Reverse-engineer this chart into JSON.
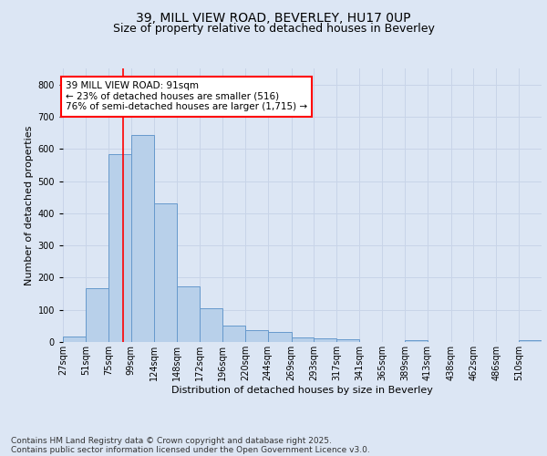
{
  "title_line1": "39, MILL VIEW ROAD, BEVERLEY, HU17 0UP",
  "title_line2": "Size of property relative to detached houses in Beverley",
  "xlabel": "Distribution of detached houses by size in Beverley",
  "ylabel": "Number of detached properties",
  "annotation_line1": "39 MILL VIEW ROAD: 91sqm",
  "annotation_line2": "← 23% of detached houses are smaller (516)",
  "annotation_line3": "76% of semi-detached houses are larger (1,715) →",
  "property_size": 91,
  "categories": [
    "27sqm",
    "51sqm",
    "75sqm",
    "99sqm",
    "124sqm",
    "148sqm",
    "172sqm",
    "196sqm",
    "220sqm",
    "244sqm",
    "269sqm",
    "293sqm",
    "317sqm",
    "341sqm",
    "365sqm",
    "389sqm",
    "413sqm",
    "438sqm",
    "462sqm",
    "486sqm",
    "510sqm"
  ],
  "bar_edges": [
    27,
    51,
    75,
    99,
    124,
    148,
    172,
    196,
    220,
    244,
    269,
    293,
    317,
    341,
    365,
    389,
    413,
    438,
    462,
    486,
    510
  ],
  "bar_widths": [
    24,
    24,
    24,
    25,
    24,
    24,
    24,
    24,
    24,
    25,
    24,
    24,
    24,
    24,
    24,
    24,
    25,
    24,
    24,
    24,
    24
  ],
  "bar_heights": [
    18,
    168,
    583,
    643,
    430,
    172,
    105,
    52,
    37,
    30,
    14,
    12,
    9,
    0,
    0,
    7,
    0,
    0,
    0,
    0,
    6
  ],
  "bar_color": "#b8d0ea",
  "bar_edge_color": "#6699cc",
  "vline_x": 91,
  "vline_color": "red",
  "grid_color": "#c8d4e8",
  "background_color": "#dce6f4",
  "ylim": [
    0,
    850
  ],
  "yticks": [
    0,
    100,
    200,
    300,
    400,
    500,
    600,
    700,
    800
  ],
  "footer_line1": "Contains HM Land Registry data © Crown copyright and database right 2025.",
  "footer_line2": "Contains public sector information licensed under the Open Government Licence v3.0.",
  "title_fontsize": 10,
  "subtitle_fontsize": 9,
  "axis_label_fontsize": 8,
  "tick_fontsize": 7,
  "annotation_fontsize": 7.5,
  "footer_fontsize": 6.5
}
